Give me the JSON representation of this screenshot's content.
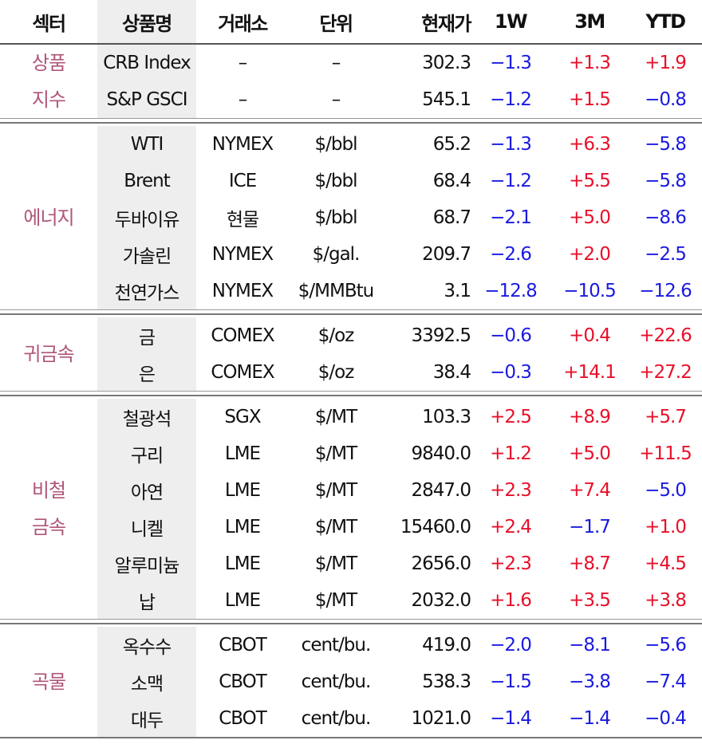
{
  "headers": {
    "sector": "섹터",
    "product": "상품명",
    "exchange": "거래소",
    "unit": "단위",
    "price": "현재가",
    "w1": "1W",
    "m3": "3M",
    "ytd": "YTD"
  },
  "groups": [
    {
      "sector_lines": [
        "상품",
        "지수"
      ],
      "rows": [
        {
          "product": "CRB Index",
          "exchange": "–",
          "unit": "–",
          "price": "302.3",
          "w1": "−1.3",
          "m3": "+1.3",
          "ytd": "+1.9"
        },
        {
          "product": "S&P GSCI",
          "exchange": "–",
          "unit": "–",
          "price": "545.1",
          "w1": "−1.2",
          "m3": "+1.5",
          "ytd": "−0.8"
        }
      ]
    },
    {
      "sector_lines": [
        "에너지"
      ],
      "rows": [
        {
          "product": "WTI",
          "exchange": "NYMEX",
          "unit": "$/bbl",
          "price": "65.2",
          "w1": "−1.3",
          "m3": "+6.3",
          "ytd": "−5.8"
        },
        {
          "product": "Brent",
          "exchange": "ICE",
          "unit": "$/bbl",
          "price": "68.4",
          "w1": "−1.2",
          "m3": "+5.5",
          "ytd": "−5.8"
        },
        {
          "product": "두바이유",
          "exchange": "현물",
          "unit": "$/bbl",
          "price": "68.7",
          "w1": "−2.1",
          "m3": "+5.0",
          "ytd": "−8.6"
        },
        {
          "product": "가솔린",
          "exchange": "NYMEX",
          "unit": "$/gal.",
          "price": "209.7",
          "w1": "−2.6",
          "m3": "+2.0",
          "ytd": "−2.5"
        },
        {
          "product": "천연가스",
          "exchange": "NYMEX",
          "unit": "$/MMBtu",
          "price": "3.1",
          "w1": "−12.8",
          "m3": "−10.5",
          "ytd": "−12.6"
        }
      ]
    },
    {
      "sector_lines": [
        "귀금속"
      ],
      "rows": [
        {
          "product": "금",
          "exchange": "COMEX",
          "unit": "$/oz",
          "price": "3392.5",
          "w1": "−0.6",
          "m3": "+0.4",
          "ytd": "+22.6"
        },
        {
          "product": "은",
          "exchange": "COMEX",
          "unit": "$/oz",
          "price": "38.4",
          "w1": "−0.3",
          "m3": "+14.1",
          "ytd": "+27.2"
        }
      ]
    },
    {
      "sector_lines": [
        "비철",
        "금속"
      ],
      "rows": [
        {
          "product": "철광석",
          "exchange": "SGX",
          "unit": "$/MT",
          "price": "103.3",
          "w1": "+2.5",
          "m3": "+8.9",
          "ytd": "+5.7"
        },
        {
          "product": "구리",
          "exchange": "LME",
          "unit": "$/MT",
          "price": "9840.0",
          "w1": "+1.2",
          "m3": "+5.0",
          "ytd": "+11.5"
        },
        {
          "product": "아연",
          "exchange": "LME",
          "unit": "$/MT",
          "price": "2847.0",
          "w1": "+2.3",
          "m3": "+7.4",
          "ytd": "−5.0"
        },
        {
          "product": "니켈",
          "exchange": "LME",
          "unit": "$/MT",
          "price": "15460.0",
          "w1": "+2.4",
          "m3": "−1.7",
          "ytd": "+1.0"
        },
        {
          "product": "알루미늄",
          "exchange": "LME",
          "unit": "$/MT",
          "price": "2656.0",
          "w1": "+2.3",
          "m3": "+8.7",
          "ytd": "+4.5"
        },
        {
          "product": "납",
          "exchange": "LME",
          "unit": "$/MT",
          "price": "2032.0",
          "w1": "+1.6",
          "m3": "+3.5",
          "ytd": "+3.8"
        }
      ]
    },
    {
      "sector_lines": [
        "곡물"
      ],
      "rows": [
        {
          "product": "옥수수",
          "exchange": "CBOT",
          "unit": "cent/bu.",
          "price": "419.0",
          "w1": "−2.0",
          "m3": "−8.1",
          "ytd": "−5.6"
        },
        {
          "product": "소맥",
          "exchange": "CBOT",
          "unit": "cent/bu.",
          "price": "538.3",
          "w1": "−1.5",
          "m3": "−3.8",
          "ytd": "−7.4"
        },
        {
          "product": "대두",
          "exchange": "CBOT",
          "unit": "cent/bu.",
          "price": "1021.0",
          "w1": "−1.4",
          "m3": "−1.4",
          "ytd": "−0.4"
        }
      ]
    }
  ],
  "colors": {
    "positive": "#e8102a",
    "negative": "#1a1ae0",
    "sector": "#b0567a",
    "shade": "#eeeeee"
  }
}
